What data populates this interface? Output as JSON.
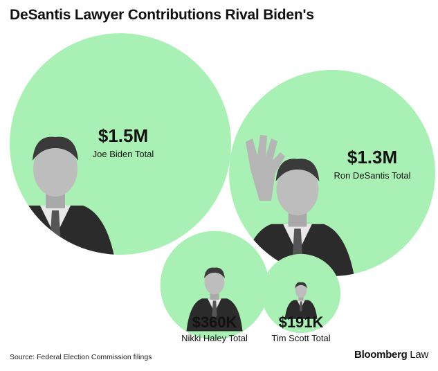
{
  "title": "DeSantis Lawyer Contributions Rival Biden's",
  "source": "Source: Federal Election Commission filings",
  "brand": {
    "name": "Bloomberg",
    "suffix": "Law"
  },
  "colors": {
    "bubble": "#a8f0b4",
    "text": "#111111",
    "background": "#ffffff"
  },
  "chart_data": {
    "type": "bubble",
    "unit": "USD",
    "categories": [
      "Joe Biden Total",
      "Ron DeSantis Total",
      "Nikki Haley Total",
      "Tim Scott Total"
    ],
    "values": [
      1500000,
      1300000,
      360000,
      191000
    ],
    "value_labels": [
      "$1.5M",
      "$1.3M",
      "$360K",
      "$191K"
    ],
    "portraits": [
      "joe-biden-photo",
      "ron-desantis-photo",
      "nikki-haley-photo",
      "tim-scott-photo"
    ]
  }
}
